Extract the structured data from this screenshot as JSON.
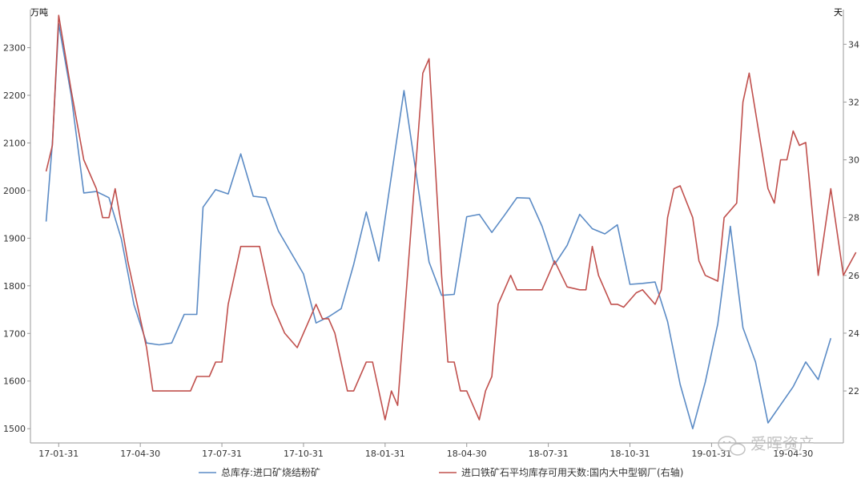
{
  "chart_data": {
    "type": "line",
    "y_left_unit": "万吨",
    "y_right_unit": "天",
    "ylim_left": [
      1470,
      2380
    ],
    "ylim_right": [
      20.2,
      35.2
    ],
    "y_left_ticks": [
      1500,
      1600,
      1700,
      1800,
      1900,
      2000,
      2100,
      2200,
      2300
    ],
    "y_right_ticks": [
      22,
      24,
      26,
      28,
      30,
      32,
      34
    ],
    "x_ticks": [
      {
        "label": "17-01-31",
        "i": 2
      },
      {
        "label": "17-04-30",
        "i": 15
      },
      {
        "label": "17-07-31",
        "i": 28
      },
      {
        "label": "17-10-31",
        "i": 41
      },
      {
        "label": "18-01-31",
        "i": 54
      },
      {
        "label": "18-04-30",
        "i": 67
      },
      {
        "label": "18-07-31",
        "i": 80
      },
      {
        "label": "18-10-31",
        "i": 93
      },
      {
        "label": "19-01-31",
        "i": 106
      },
      {
        "label": "19-04-30",
        "i": 119
      }
    ],
    "x_count": 123,
    "series": [
      {
        "name": "总库存:进口矿烧结粉矿",
        "axis": "left",
        "color": "#5b8bc5",
        "points": [
          [
            0,
            1935
          ],
          [
            1,
            2100
          ],
          [
            2,
            2350
          ],
          [
            4,
            2200
          ],
          [
            6,
            1995
          ],
          [
            8,
            1998
          ],
          [
            10,
            1985
          ],
          [
            12,
            1898
          ],
          [
            14,
            1760
          ],
          [
            16,
            1680
          ],
          [
            18,
            1676
          ],
          [
            20,
            1680
          ],
          [
            22,
            1740
          ],
          [
            24,
            1740
          ],
          [
            25,
            1965
          ],
          [
            27,
            2002
          ],
          [
            29,
            1993
          ],
          [
            31,
            2077
          ],
          [
            33,
            1988
          ],
          [
            35,
            1985
          ],
          [
            37,
            1915
          ],
          [
            41,
            1825
          ],
          [
            43,
            1722
          ],
          [
            45,
            1735
          ],
          [
            47,
            1752
          ],
          [
            49,
            1845
          ],
          [
            51,
            1955
          ],
          [
            53,
            1852
          ],
          [
            57,
            2210
          ],
          [
            61,
            1850
          ],
          [
            63,
            1780
          ],
          [
            65,
            1782
          ],
          [
            67,
            1945
          ],
          [
            69,
            1950
          ],
          [
            71,
            1912
          ],
          [
            73,
            1948
          ],
          [
            75,
            1985
          ],
          [
            77,
            1984
          ],
          [
            79,
            1925
          ],
          [
            81,
            1845
          ],
          [
            83,
            1885
          ],
          [
            85,
            1950
          ],
          [
            87,
            1920
          ],
          [
            89,
            1909
          ],
          [
            91,
            1928
          ],
          [
            93,
            1803
          ],
          [
            95,
            1805
          ],
          [
            97,
            1808
          ],
          [
            99,
            1725
          ],
          [
            101,
            1593
          ],
          [
            103,
            1500
          ],
          [
            105,
            1598
          ],
          [
            107,
            1720
          ],
          [
            109,
            1925
          ],
          [
            111,
            1712
          ],
          [
            113,
            1640
          ],
          [
            115,
            1512
          ],
          [
            117,
            1550
          ],
          [
            119,
            1588
          ],
          [
            121,
            1640
          ],
          [
            123,
            1603
          ],
          [
            125,
            1690
          ]
        ]
      },
      {
        "name": "进口铁矿石平均库存可用天数:国内大中型钢厂(右轴)",
        "axis": "right",
        "color": "#c0504d",
        "points": [
          [
            0,
            29.6
          ],
          [
            1,
            30.5
          ],
          [
            2,
            35.0
          ],
          [
            4,
            32.4
          ],
          [
            6,
            30.0
          ],
          [
            8,
            29.0
          ],
          [
            9,
            28.0
          ],
          [
            10,
            28.0
          ],
          [
            11,
            29.0
          ],
          [
            13,
            26.5
          ],
          [
            15,
            24.5
          ],
          [
            16,
            23.5
          ],
          [
            17,
            22.0
          ],
          [
            19,
            22.0
          ],
          [
            21,
            22.0
          ],
          [
            23,
            22.0
          ],
          [
            24,
            22.5
          ],
          [
            26,
            22.5
          ],
          [
            27,
            23.0
          ],
          [
            28,
            23.0
          ],
          [
            29,
            25.0
          ],
          [
            31,
            27.0
          ],
          [
            34,
            27.0
          ],
          [
            36,
            25.0
          ],
          [
            38,
            24.0
          ],
          [
            40,
            23.5
          ],
          [
            43,
            25.0
          ],
          [
            44,
            24.5
          ],
          [
            45,
            24.5
          ],
          [
            46,
            24.0
          ],
          [
            48,
            22.0
          ],
          [
            49,
            22.0
          ],
          [
            51,
            23.0
          ],
          [
            52,
            23.0
          ],
          [
            54,
            21.0
          ],
          [
            55,
            22.0
          ],
          [
            56,
            21.5
          ],
          [
            60,
            33.0
          ],
          [
            61,
            33.5
          ],
          [
            63,
            26.0
          ],
          [
            64,
            23.0
          ],
          [
            65,
            23.0
          ],
          [
            66,
            22.0
          ],
          [
            67,
            22.0
          ],
          [
            69,
            21.0
          ],
          [
            70,
            22.0
          ],
          [
            71,
            22.5
          ],
          [
            72,
            25.0
          ],
          [
            74,
            26.0
          ],
          [
            75,
            25.5
          ],
          [
            77,
            25.5
          ],
          [
            79,
            25.5
          ],
          [
            81,
            26.5
          ],
          [
            83,
            25.6
          ],
          [
            85,
            25.5
          ],
          [
            86,
            25.5
          ],
          [
            87,
            27.0
          ],
          [
            88,
            26.0
          ],
          [
            90,
            25.0
          ],
          [
            91,
            25.0
          ],
          [
            92,
            24.9
          ],
          [
            94,
            25.4
          ],
          [
            95,
            25.5
          ],
          [
            97,
            25.0
          ],
          [
            98,
            25.5
          ],
          [
            99,
            28.0
          ],
          [
            100,
            29.0
          ],
          [
            101,
            29.1
          ],
          [
            103,
            28.0
          ],
          [
            104,
            26.5
          ],
          [
            105,
            26.0
          ],
          [
            107,
            25.8
          ],
          [
            108,
            28.0
          ],
          [
            110,
            28.5
          ],
          [
            111,
            32.0
          ],
          [
            112,
            33.0
          ],
          [
            115,
            29.0
          ],
          [
            116,
            28.5
          ],
          [
            117,
            30.0
          ],
          [
            118,
            30.0
          ],
          [
            119,
            31.0
          ],
          [
            120,
            30.5
          ],
          [
            121,
            30.6
          ],
          [
            123,
            26.0
          ],
          [
            125,
            29.0
          ],
          [
            127,
            26.0
          ],
          [
            129,
            26.8
          ]
        ]
      }
    ],
    "legend": {
      "placement": "bottom"
    }
  },
  "watermark": {
    "text": "爱晖资产",
    "icon": "wechat-icon"
  }
}
